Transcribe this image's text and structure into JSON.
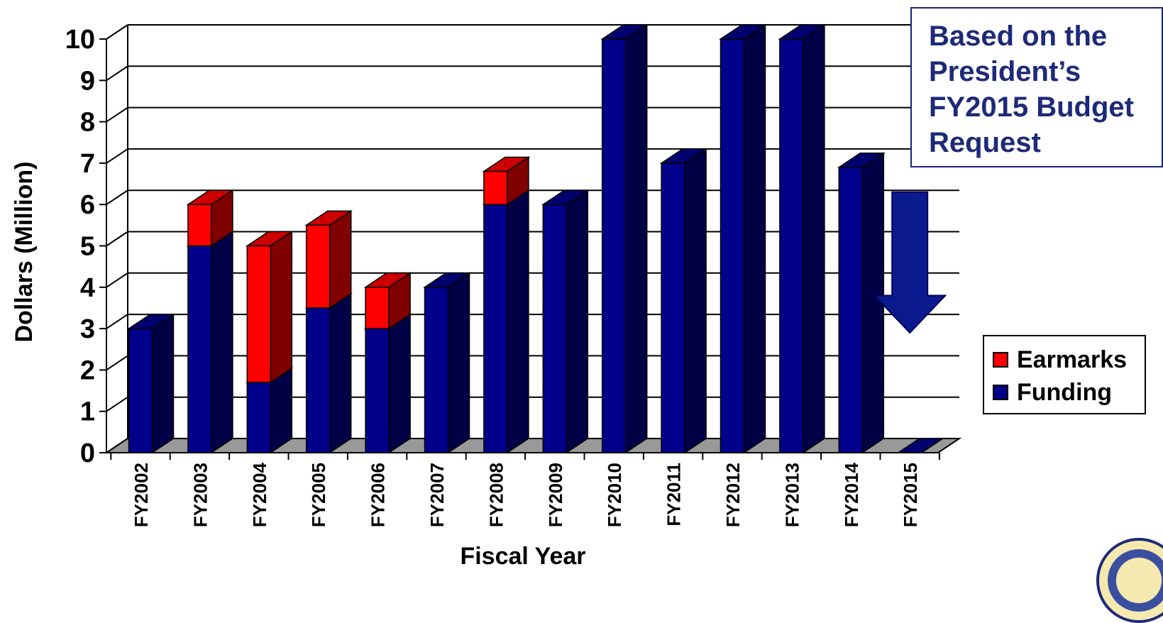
{
  "chart_data": {
    "type": "bar",
    "stacked": true,
    "three_d": true,
    "categories": [
      "FY2002",
      "FY2003",
      "FY2004",
      "FY2005",
      "FY2006",
      "FY2007",
      "FY2008",
      "FY2009",
      "FY2010",
      "FY2011",
      "FY2012",
      "FY2013",
      "FY2014",
      "FY2015"
    ],
    "series": [
      {
        "name": "Funding",
        "color": "#00008b",
        "values": [
          3,
          5,
          1.7,
          3.5,
          3,
          4,
          6,
          6,
          10,
          7,
          10,
          10,
          6.9,
          0
        ]
      },
      {
        "name": "Earmarks",
        "color": "#ff0000",
        "values": [
          0,
          1,
          3.3,
          2,
          1,
          0,
          0.8,
          0,
          0,
          0,
          0,
          0,
          0,
          0
        ]
      }
    ],
    "xlabel": "Fiscal Year",
    "ylabel": "Dollars (Million)",
    "ylim": [
      0,
      10
    ],
    "yticks": [
      "0",
      "1",
      "2",
      "3",
      "4",
      "5",
      "6",
      "7",
      "8",
      "9",
      "10"
    ],
    "grid": true,
    "legend_position": "right",
    "legend": [
      {
        "label": "Earmarks",
        "color": "#ff0000"
      },
      {
        "label": "Funding",
        "color": "#00008b"
      }
    ],
    "annotation": {
      "lines": [
        "Based on the",
        "President’s",
        "FY2015 Budget",
        "Request"
      ],
      "arrow": "down"
    }
  }
}
